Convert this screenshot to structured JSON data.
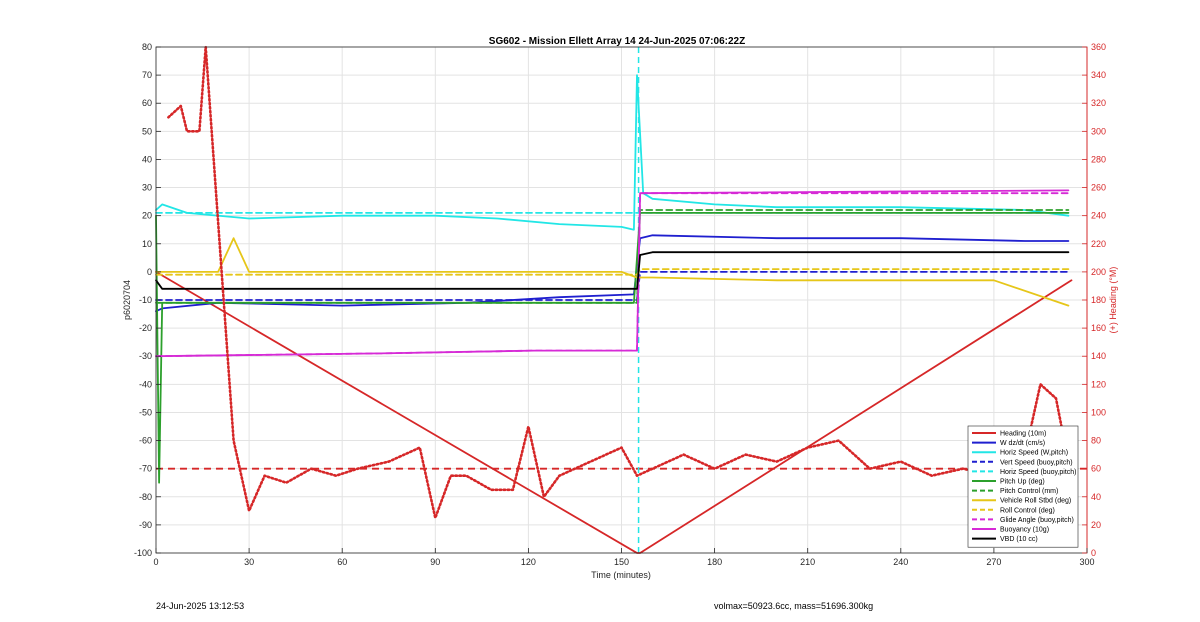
{
  "chart_data": {
    "type": "line",
    "title": "SG602 - Mission Ellett Array 14 24-Jun-2025 07:06:22Z",
    "xlabel": "Time (minutes)",
    "ylabel": "p6020704",
    "ylabel_right": "(+) Heading (°M)",
    "xlim": [
      0,
      300
    ],
    "ylim": [
      -100,
      80
    ],
    "ylim_right": [
      0,
      360
    ],
    "x_ticks": [
      0,
      30,
      60,
      90,
      120,
      150,
      180,
      210,
      240,
      270,
      300
    ],
    "y_ticks": [
      -100,
      -90,
      -80,
      -70,
      -60,
      -50,
      -40,
      -30,
      -20,
      -10,
      0,
      10,
      20,
      30,
      40,
      50,
      60,
      70,
      80
    ],
    "y_ticks_right": [
      0,
      20,
      40,
      60,
      80,
      100,
      120,
      140,
      160,
      180,
      200,
      220,
      240,
      260,
      280,
      300,
      320,
      340,
      360
    ],
    "grid": true,
    "legend_position": "bottom-right",
    "apogee_marker_x": 155.5,
    "series": [
      {
        "name": "Heading (10m)",
        "color": "#d62728",
        "style": "solid",
        "x": [
          0,
          155,
          156,
          295
        ],
        "y": [
          0,
          -100,
          -100,
          -3
        ]
      },
      {
        "name": "W dz/dt (cm/s)",
        "color": "#1f1fcf",
        "style": "solid",
        "x": [
          0,
          2,
          20,
          60,
          100,
          130,
          154,
          156,
          160,
          200,
          240,
          280,
          294
        ],
        "y": [
          -14,
          -13,
          -11,
          -12,
          -11,
          -9,
          -8,
          12,
          13,
          12,
          12,
          11,
          11
        ]
      },
      {
        "name": "Horiz Speed (W,pitch)",
        "color": "#22e6e6",
        "style": "solid",
        "x": [
          0,
          2,
          10,
          30,
          60,
          90,
          110,
          130,
          150,
          154,
          155,
          157,
          160,
          180,
          200,
          240,
          280,
          294
        ],
        "y": [
          22,
          24,
          21,
          19,
          20,
          20,
          19,
          17,
          16,
          15,
          70,
          28,
          26,
          24,
          23,
          23,
          22,
          20
        ]
      },
      {
        "name": "Vert Speed (buoy,pitch)",
        "color": "#1f1fcf",
        "style": "dashed",
        "x": [
          0,
          155,
          156,
          294
        ],
        "y": [
          -10,
          -10,
          0,
          0
        ]
      },
      {
        "name": "Horiz Speed (buoy,pitch)",
        "color": "#22e6e6",
        "style": "dashed",
        "x": [
          0,
          294
        ],
        "y": [
          21,
          21
        ]
      },
      {
        "name": "Pitch Up (deg)",
        "color": "#2ca02c",
        "style": "solid",
        "x": [
          0,
          1,
          2,
          4,
          154,
          156,
          294
        ],
        "y": [
          20,
          -75,
          -11,
          -11,
          -11,
          21,
          21
        ]
      },
      {
        "name": "Pitch Control (mm)",
        "color": "#2ca02c",
        "style": "dashed",
        "x": [
          0,
          155,
          156,
          294
        ],
        "y": [
          -11,
          -11,
          22,
          22
        ]
      },
      {
        "name": "Vehicle Roll Stbd (deg)",
        "color": "#e6c619",
        "style": "solid",
        "x": [
          0,
          20,
          25,
          30,
          60,
          90,
          120,
          150,
          155,
          160,
          200,
          240,
          270,
          294
        ],
        "y": [
          0,
          0,
          12,
          0,
          0,
          0,
          0,
          0,
          -2,
          -2,
          -3,
          -3,
          -3,
          -12
        ]
      },
      {
        "name": "Roll Control (deg)",
        "color": "#e6c619",
        "style": "dashed",
        "x": [
          0,
          155,
          156,
          294
        ],
        "y": [
          -1,
          -1,
          1,
          1
        ]
      },
      {
        "name": "Glide Angle (buoy,pitch)",
        "color": "#d62ad6",
        "style": "dashed",
        "x": [
          0,
          72,
          122,
          155,
          156,
          294
        ],
        "y": [
          -30,
          -29,
          -28,
          -28,
          28,
          28
        ]
      },
      {
        "name": "Buoyancy (10g)",
        "color": "#d62ad6",
        "style": "solid",
        "x": [
          0,
          72,
          122,
          155,
          156,
          294
        ],
        "y": [
          -30,
          -29,
          -28,
          -28,
          28,
          29
        ]
      },
      {
        "name": "VBD (10 cc)",
        "color": "#000000",
        "style": "solid",
        "x": [
          0,
          2,
          155,
          156,
          160,
          294
        ],
        "y": [
          -3,
          -6,
          -6,
          6,
          7,
          7
        ]
      },
      {
        "name": "Heading (right axis)",
        "color": "#d62728",
        "style": "dotted",
        "axis": "right",
        "x": [
          0,
          4,
          8,
          10,
          14,
          16,
          22,
          25,
          30,
          35,
          42,
          50,
          58,
          65,
          75,
          85,
          90,
          95,
          100,
          108,
          115,
          120,
          125,
          130,
          140,
          150,
          155,
          160,
          170,
          180,
          190,
          200,
          210,
          220,
          230,
          240,
          250,
          260,
          270,
          278,
          282,
          285,
          290,
          294
        ],
        "y_right": [
          null,
          310,
          318,
          300,
          300,
          360,
          null,
          80,
          30,
          55,
          50,
          60,
          55,
          60,
          65,
          75,
          25,
          55,
          55,
          45,
          45,
          90,
          40,
          55,
          65,
          75,
          55,
          60,
          70,
          60,
          70,
          65,
          75,
          80,
          60,
          65,
          55,
          60,
          55,
          70,
          90,
          120,
          110,
          65
        ]
      }
    ],
    "heading_ref_line": 60,
    "annotations": []
  },
  "legend": [
    {
      "label": "Heading (10m)",
      "color": "#d62728",
      "dash": "solid"
    },
    {
      "label": "W dz/dt (cm/s)",
      "color": "#1f1fcf",
      "dash": "solid"
    },
    {
      "label": "Horiz Speed (W,pitch)",
      "color": "#22e6e6",
      "dash": "solid"
    },
    {
      "label": "Vert Speed (buoy,pitch)",
      "color": "#1f1fcf",
      "dash": "dashed"
    },
    {
      "label": "Horiz Speed (buoy,pitch)",
      "color": "#22e6e6",
      "dash": "dashed"
    },
    {
      "label": "Pitch Up (deg)",
      "color": "#2ca02c",
      "dash": "solid"
    },
    {
      "label": "Pitch Control (mm)",
      "color": "#2ca02c",
      "dash": "dashed"
    },
    {
      "label": "Vehicle Roll Stbd (deg)",
      "color": "#e6c619",
      "dash": "solid"
    },
    {
      "label": "Roll Control (deg)",
      "color": "#e6c619",
      "dash": "dashed"
    },
    {
      "label": "Glide Angle (buoy,pitch)",
      "color": "#d62ad6",
      "dash": "dashed"
    },
    {
      "label": "Buoyancy (10g)",
      "color": "#d62ad6",
      "dash": "solid"
    },
    {
      "label": "VBD (10 cc)",
      "color": "#000000",
      "dash": "solid"
    }
  ],
  "footer": {
    "left": "24-Jun-2025 13:12:53",
    "right": "volmax=50923.6cc, mass=51696.300kg"
  }
}
